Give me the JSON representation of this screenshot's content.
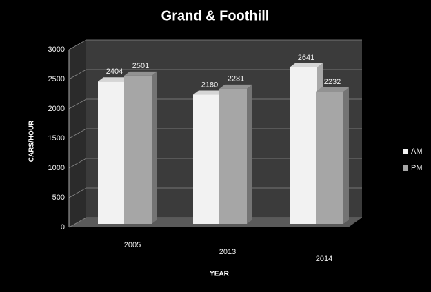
{
  "chart_data": {
    "type": "bar",
    "title": "Grand & Foothill",
    "x_label": "YEAR",
    "y_label": "CARS/HOUR",
    "categories": [
      "2005",
      "2013",
      "2014"
    ],
    "series": [
      {
        "name": "AM",
        "color": "#f2f2f2",
        "values": [
          2404,
          2180,
          2641
        ]
      },
      {
        "name": "PM",
        "color": "#a6a6a6",
        "values": [
          2501,
          2281,
          2232
        ]
      }
    ],
    "ylim": [
      0,
      3000
    ],
    "yticks": [
      0,
      500,
      1000,
      1500,
      2000,
      2500,
      3000
    ],
    "grid": true,
    "legend": "right"
  }
}
